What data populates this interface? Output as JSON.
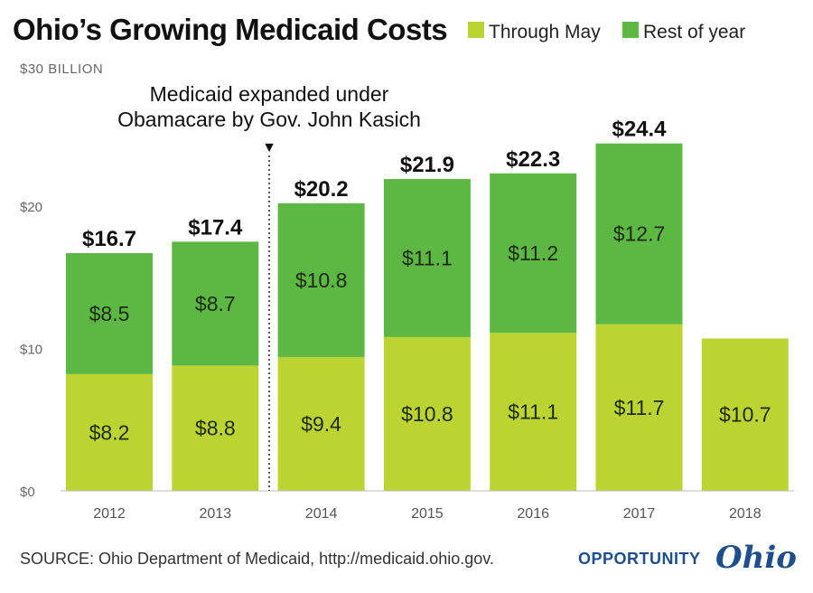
{
  "title": "Ohio’s Growing Medicaid Costs",
  "legend": [
    {
      "label": "Through May",
      "color": "#bcd432"
    },
    {
      "label": "Rest of year",
      "color": "#5db745"
    }
  ],
  "y_unit_label": "$30 BILLION",
  "annotation": {
    "lines": [
      "Medicaid expanded under",
      "Obamacare by Gov. John Kasich"
    ],
    "marker": "▼"
  },
  "source": "SOURCE: Ohio Department of Medicaid, http://medicaid.ohio.gov.",
  "brand": {
    "word": "OPPORTUNITY",
    "script": "Ohio"
  },
  "chart_data": {
    "type": "bar",
    "stacked": true,
    "categories": [
      "2012",
      "2013",
      "2014",
      "2015",
      "2016",
      "2017",
      "2018"
    ],
    "series": [
      {
        "name": "Through May",
        "values": [
          8.2,
          8.8,
          9.4,
          10.8,
          11.1,
          11.7,
          10.7
        ],
        "labels": [
          "$8.2",
          "$8.8",
          "$9.4",
          "$10.8",
          "$11.1",
          "$11.7",
          "$10.7"
        ],
        "color": "#bcd432"
      },
      {
        "name": "Rest of year",
        "values": [
          8.5,
          8.7,
          10.8,
          11.1,
          11.2,
          12.7,
          null
        ],
        "labels": [
          "$8.5",
          "$8.7",
          "$10.8",
          "$11.1",
          "$11.2",
          "$12.7",
          null
        ],
        "color": "#5db745"
      }
    ],
    "totals": [
      "$16.7",
      "$17.4",
      "$20.2",
      "$21.9",
      "$22.3",
      "$24.4",
      null
    ],
    "yticks": [
      {
        "value": 0,
        "label": "$0"
      },
      {
        "value": 10,
        "label": "$10"
      },
      {
        "value": 20,
        "label": "$20"
      }
    ],
    "ylim": [
      0,
      30
    ],
    "grid": false,
    "legend_position": "top-right",
    "annotation_after_category": "2013"
  }
}
